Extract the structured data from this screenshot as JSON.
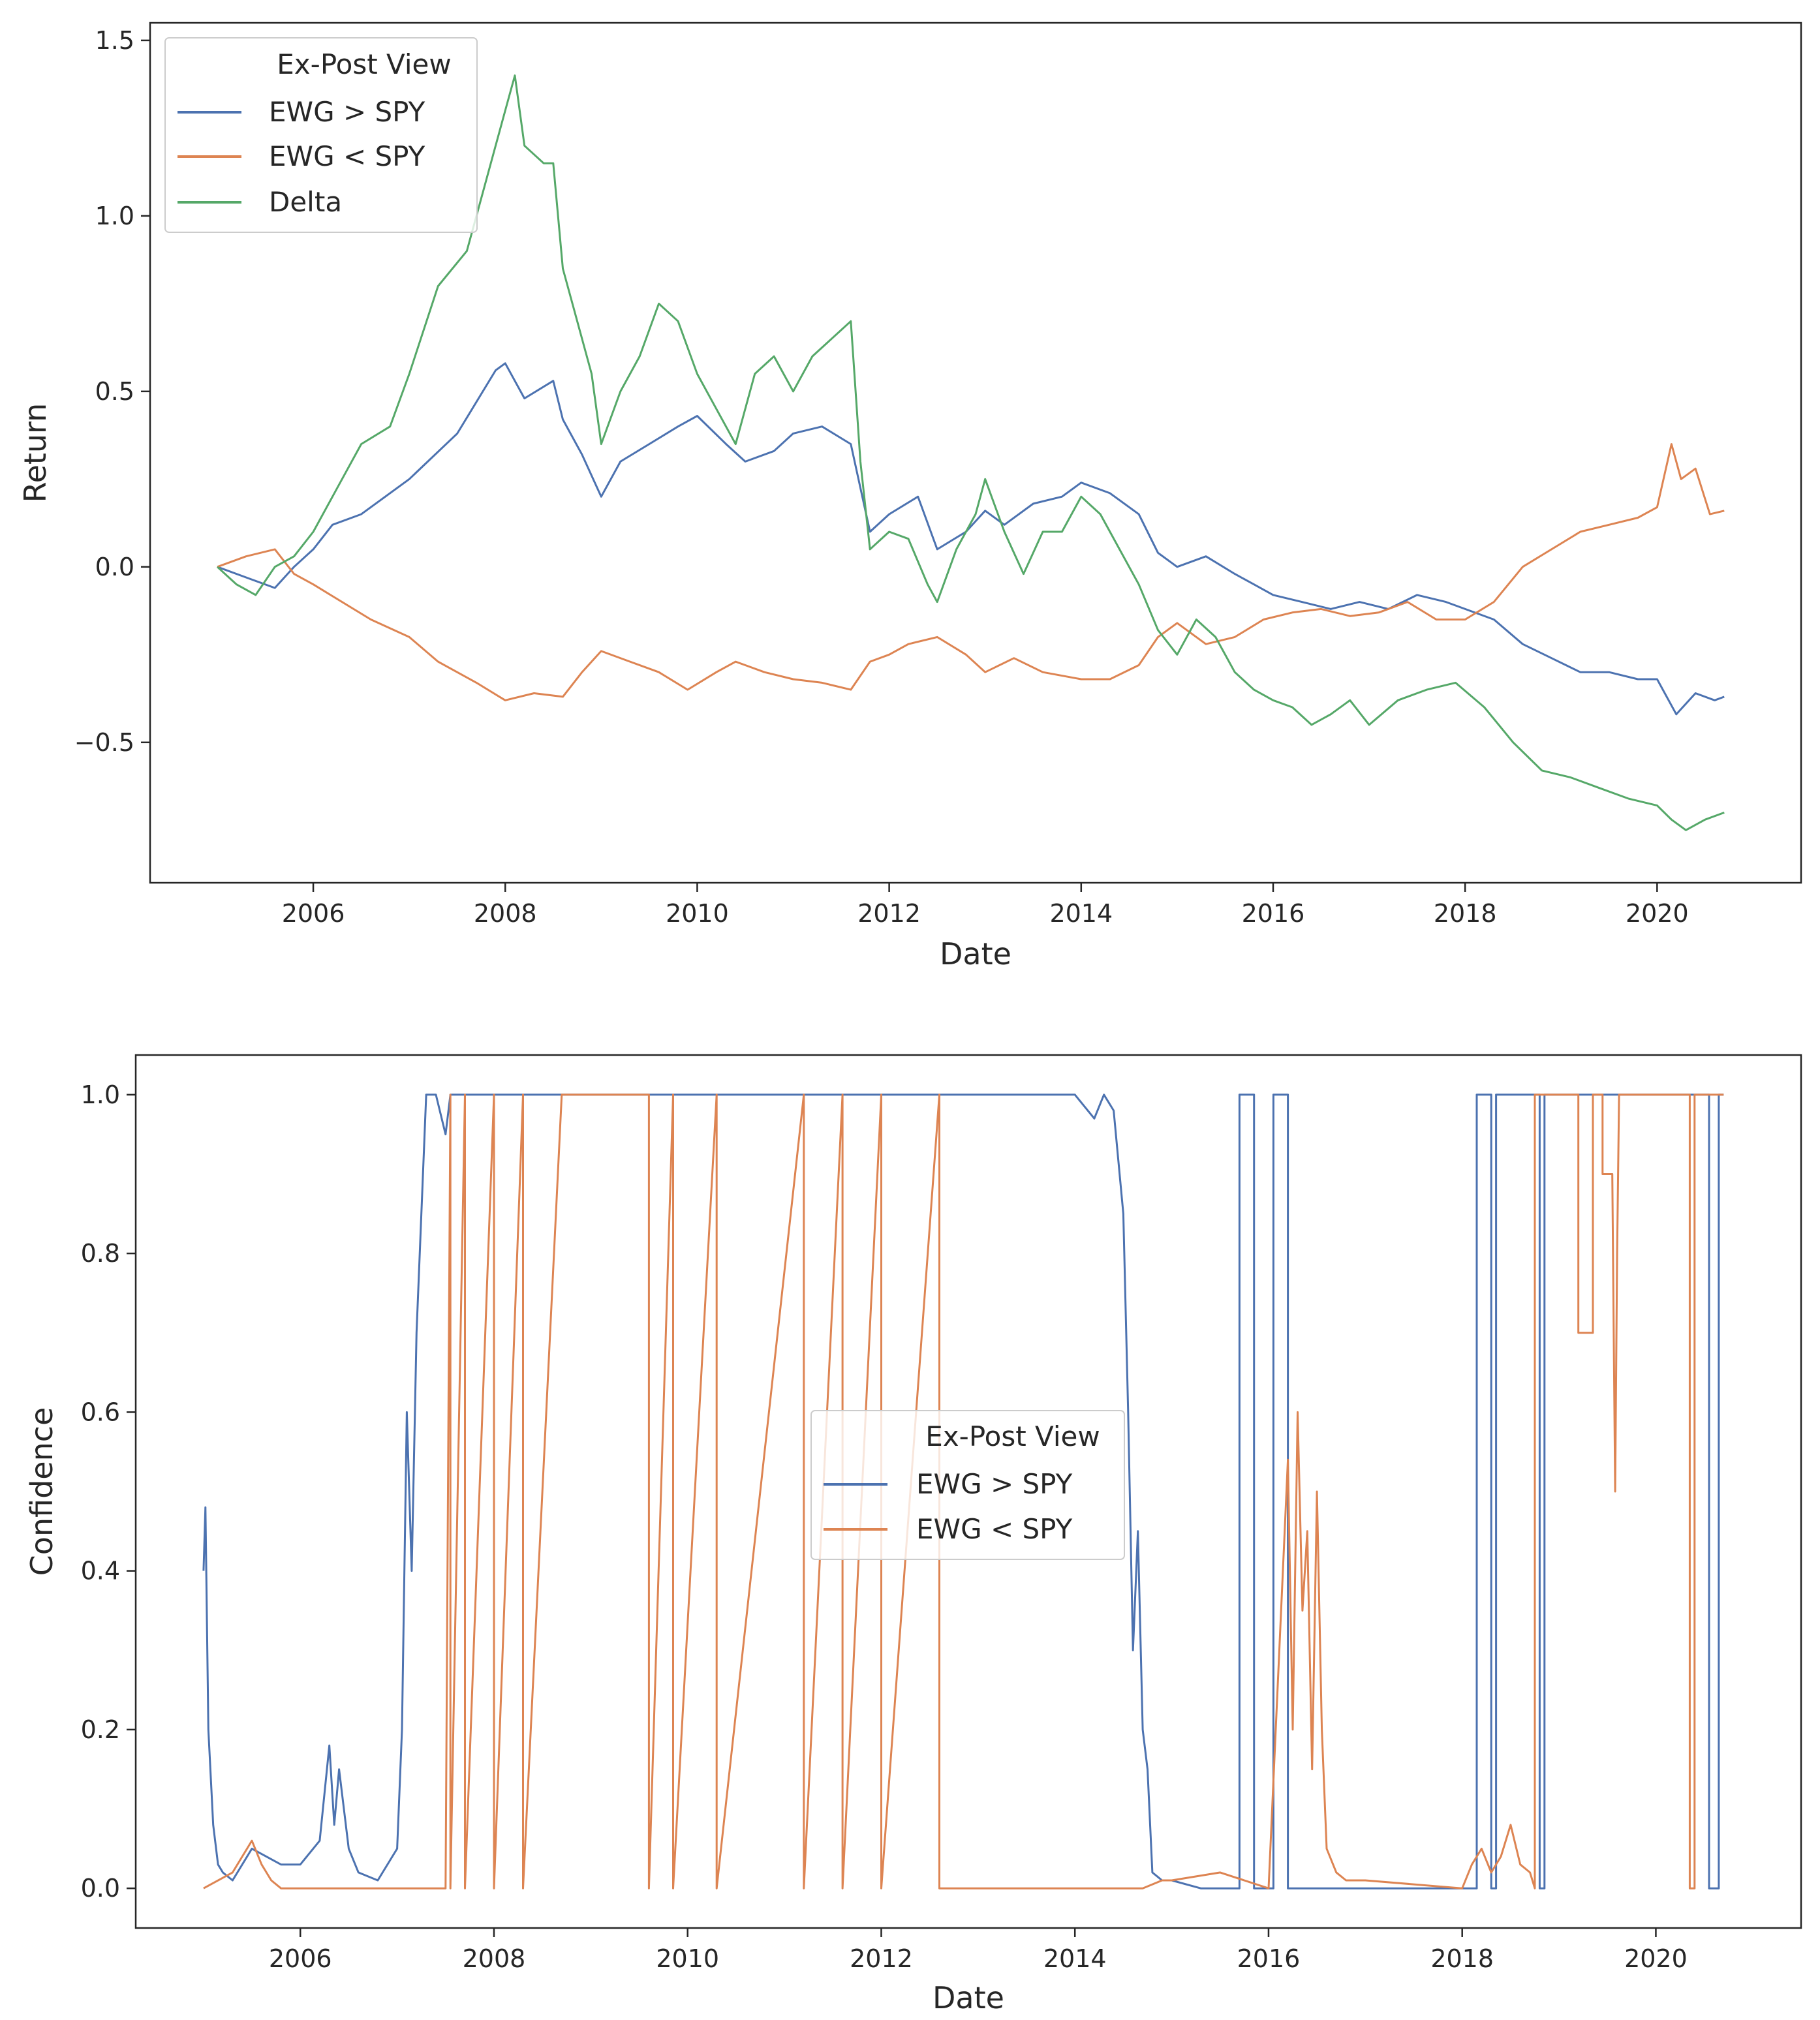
{
  "colors": {
    "ewg_gt_spy": "#4c72b0",
    "ewg_lt_spy": "#dd8452",
    "delta": "#55a868",
    "axes": "#262626",
    "legend_frame": "#cccccc"
  },
  "chart_data": [
    {
      "type": "line",
      "xlabel": "Date",
      "ylabel": "Return",
      "xlim": [
        2004.3,
        2021.5
      ],
      "ylim": [
        -0.9,
        1.55
      ],
      "xticks": [
        {
          "value": 2006,
          "label": "2006"
        },
        {
          "value": 2008,
          "label": "2008"
        },
        {
          "value": 2010,
          "label": "2010"
        },
        {
          "value": 2012,
          "label": "2012"
        },
        {
          "value": 2014,
          "label": "2014"
        },
        {
          "value": 2016,
          "label": "2016"
        },
        {
          "value": 2018,
          "label": "2018"
        },
        {
          "value": 2020,
          "label": "2020"
        }
      ],
      "yticks": [
        {
          "value": -0.5,
          "label": "−0.5"
        },
        {
          "value": 0.0,
          "label": "0.0"
        },
        {
          "value": 0.5,
          "label": "0.5"
        },
        {
          "value": 1.0,
          "label": "1.0"
        },
        {
          "value": 1.5,
          "label": "1.5"
        }
      ],
      "legend": {
        "title": "Ex-Post View",
        "position": "upper-left"
      },
      "series": [
        {
          "name": "EWG > SPY",
          "color_key": "ewg_gt_spy",
          "x": [
            2005.0,
            2005.3,
            2005.6,
            2005.8,
            2006.0,
            2006.2,
            2006.5,
            2007.0,
            2007.5,
            2007.9,
            2008.0,
            2008.2,
            2008.5,
            2008.6,
            2008.8,
            2009.0,
            2009.2,
            2009.5,
            2009.8,
            2010.0,
            2010.3,
            2010.5,
            2010.8,
            2011.0,
            2011.3,
            2011.6,
            2011.8,
            2012.0,
            2012.3,
            2012.5,
            2012.8,
            2013.0,
            2013.2,
            2013.5,
            2013.8,
            2014.0,
            2014.3,
            2014.6,
            2014.8,
            2015.0,
            2015.3,
            2015.6,
            2015.8,
            2016.0,
            2016.3,
            2016.6,
            2016.9,
            2017.2,
            2017.5,
            2017.8,
            2018.0,
            2018.3,
            2018.6,
            2018.9,
            2019.2,
            2019.5,
            2019.8,
            2020.0,
            2020.2,
            2020.4,
            2020.6,
            2020.7
          ],
          "y": [
            0.0,
            -0.03,
            -0.06,
            0.0,
            0.05,
            0.12,
            0.15,
            0.25,
            0.38,
            0.56,
            0.58,
            0.48,
            0.53,
            0.42,
            0.32,
            0.2,
            0.3,
            0.35,
            0.4,
            0.43,
            0.35,
            0.3,
            0.33,
            0.38,
            0.4,
            0.35,
            0.1,
            0.15,
            0.2,
            0.05,
            0.1,
            0.16,
            0.12,
            0.18,
            0.2,
            0.24,
            0.21,
            0.15,
            0.04,
            0.0,
            0.03,
            -0.02,
            -0.05,
            -0.08,
            -0.1,
            -0.12,
            -0.1,
            -0.12,
            -0.08,
            -0.1,
            -0.12,
            -0.15,
            -0.22,
            -0.26,
            -0.3,
            -0.3,
            -0.32,
            -0.32,
            -0.42,
            -0.36,
            -0.38,
            -0.37
          ]
        },
        {
          "name": "EWG < SPY",
          "color_key": "ewg_lt_spy",
          "x": [
            2005.0,
            2005.3,
            2005.6,
            2005.8,
            2006.0,
            2006.3,
            2006.6,
            2007.0,
            2007.3,
            2007.7,
            2008.0,
            2008.3,
            2008.6,
            2008.8,
            2009.0,
            2009.3,
            2009.6,
            2009.9,
            2010.2,
            2010.4,
            2010.7,
            2011.0,
            2011.3,
            2011.6,
            2011.8,
            2012.0,
            2012.2,
            2012.5,
            2012.8,
            2013.0,
            2013.3,
            2013.6,
            2014.0,
            2014.3,
            2014.6,
            2014.8,
            2015.0,
            2015.3,
            2015.6,
            2015.9,
            2016.2,
            2016.5,
            2016.8,
            2017.1,
            2017.4,
            2017.7,
            2018.0,
            2018.3,
            2018.6,
            2018.9,
            2019.2,
            2019.5,
            2019.8,
            2020.0,
            2020.15,
            2020.25,
            2020.4,
            2020.55,
            2020.7
          ],
          "y": [
            0.0,
            0.03,
            0.05,
            -0.02,
            -0.05,
            -0.1,
            -0.15,
            -0.2,
            -0.27,
            -0.33,
            -0.38,
            -0.36,
            -0.37,
            -0.3,
            -0.24,
            -0.27,
            -0.3,
            -0.35,
            -0.3,
            -0.27,
            -0.3,
            -0.32,
            -0.33,
            -0.35,
            -0.27,
            -0.25,
            -0.22,
            -0.2,
            -0.25,
            -0.3,
            -0.26,
            -0.3,
            -0.32,
            -0.32,
            -0.28,
            -0.2,
            -0.16,
            -0.22,
            -0.2,
            -0.15,
            -0.13,
            -0.12,
            -0.14,
            -0.13,
            -0.1,
            -0.15,
            -0.15,
            -0.1,
            0.0,
            0.05,
            0.1,
            0.12,
            0.14,
            0.17,
            0.35,
            0.25,
            0.28,
            0.15,
            0.16
          ]
        },
        {
          "name": "Delta",
          "color_key": "delta",
          "x": [
            2005.0,
            2005.2,
            2005.4,
            2005.6,
            2005.8,
            2006.0,
            2006.3,
            2006.5,
            2006.8,
            2007.0,
            2007.3,
            2007.6,
            2007.8,
            2008.0,
            2008.1,
            2008.2,
            2008.4,
            2008.5,
            2008.6,
            2008.7,
            2008.9,
            2009.0,
            2009.2,
            2009.4,
            2009.6,
            2009.8,
            2010.0,
            2010.2,
            2010.4,
            2010.6,
            2010.8,
            2011.0,
            2011.2,
            2011.4,
            2011.6,
            2011.7,
            2011.8,
            2012.0,
            2012.2,
            2012.4,
            2012.5,
            2012.7,
            2012.9,
            2013.0,
            2013.2,
            2013.4,
            2013.6,
            2013.8,
            2014.0,
            2014.2,
            2014.4,
            2014.6,
            2014.8,
            2015.0,
            2015.2,
            2015.4,
            2015.6,
            2015.8,
            2016.0,
            2016.2,
            2016.4,
            2016.6,
            2016.8,
            2017.0,
            2017.3,
            2017.6,
            2017.9,
            2018.2,
            2018.5,
            2018.8,
            2019.1,
            2019.4,
            2019.7,
            2020.0,
            2020.15,
            2020.3,
            2020.5,
            2020.7
          ],
          "y": [
            0.0,
            -0.05,
            -0.08,
            0.0,
            0.03,
            0.1,
            0.25,
            0.35,
            0.4,
            0.55,
            0.8,
            0.9,
            1.1,
            1.3,
            1.4,
            1.2,
            1.15,
            1.15,
            0.85,
            0.75,
            0.55,
            0.35,
            0.5,
            0.6,
            0.75,
            0.7,
            0.55,
            0.45,
            0.35,
            0.55,
            0.6,
            0.5,
            0.6,
            0.65,
            0.7,
            0.3,
            0.05,
            0.1,
            0.08,
            -0.05,
            -0.1,
            0.05,
            0.15,
            0.25,
            0.1,
            -0.02,
            0.1,
            0.1,
            0.2,
            0.15,
            0.05,
            -0.05,
            -0.18,
            -0.25,
            -0.15,
            -0.2,
            -0.3,
            -0.35,
            -0.38,
            -0.4,
            -0.45,
            -0.42,
            -0.38,
            -0.45,
            -0.38,
            -0.35,
            -0.33,
            -0.4,
            -0.5,
            -0.58,
            -0.6,
            -0.63,
            -0.66,
            -0.68,
            -0.72,
            -0.75,
            -0.72,
            -0.7
          ]
        }
      ]
    },
    {
      "type": "line",
      "xlabel": "Date",
      "ylabel": "Confidence",
      "xlim": [
        2004.3,
        2021.5
      ],
      "ylim": [
        -0.05,
        1.05
      ],
      "xticks": [
        {
          "value": 2006,
          "label": "2006"
        },
        {
          "value": 2008,
          "label": "2008"
        },
        {
          "value": 2010,
          "label": "2010"
        },
        {
          "value": 2012,
          "label": "2012"
        },
        {
          "value": 2014,
          "label": "2014"
        },
        {
          "value": 2016,
          "label": "2016"
        },
        {
          "value": 2018,
          "label": "2018"
        },
        {
          "value": 2020,
          "label": "2020"
        }
      ],
      "yticks": [
        {
          "value": 0.0,
          "label": "0.0"
        },
        {
          "value": 0.2,
          "label": "0.2"
        },
        {
          "value": 0.4,
          "label": "0.4"
        },
        {
          "value": 0.6,
          "label": "0.6"
        },
        {
          "value": 0.8,
          "label": "0.8"
        },
        {
          "value": 1.0,
          "label": "1.0"
        }
      ],
      "legend": {
        "title": "Ex-Post View",
        "position": "center"
      },
      "series": [
        {
          "name": "EWG > SPY",
          "color_key": "ewg_gt_spy",
          "x": [
            2005.0,
            2005.02,
            2005.05,
            2005.1,
            2005.15,
            2005.2,
            2005.3,
            2005.5,
            2005.8,
            2006.0,
            2006.2,
            2006.3,
            2006.35,
            2006.4,
            2006.5,
            2006.6,
            2006.8,
            2007.0,
            2007.05,
            2007.1,
            2007.15,
            2007.2,
            2007.25,
            2007.3,
            2007.4,
            2007.5,
            2007.55,
            2007.6,
            2007.7,
            2008.0,
            2009.0,
            2010.0,
            2011.0,
            2012.0,
            2013.0,
            2014.0,
            2014.2,
            2014.3,
            2014.4,
            2014.5,
            2014.55,
            2014.6,
            2014.65,
            2014.7,
            2014.75,
            2014.8,
            2014.9,
            2015.0,
            2015.3,
            2015.7,
            2015.7,
            2015.85,
            2015.85,
            2016.0,
            2016.05,
            2016.05,
            2016.2,
            2016.2,
            2016.3,
            2017.0,
            2018.0,
            2018.1,
            2018.15,
            2018.15,
            2018.3,
            2018.3,
            2018.35,
            2018.35,
            2018.8,
            2018.8,
            2018.85,
            2018.85,
            2019.5,
            2020.5,
            2020.55,
            2020.55,
            2020.65,
            2020.65,
            2020.7
          ],
          "y": [
            0.4,
            0.48,
            0.2,
            0.08,
            0.03,
            0.02,
            0.01,
            0.05,
            0.03,
            0.03,
            0.06,
            0.18,
            0.08,
            0.15,
            0.05,
            0.02,
            0.01,
            0.05,
            0.2,
            0.6,
            0.4,
            0.7,
            0.85,
            1.0,
            1.0,
            0.95,
            1.0,
            1.0,
            1.0,
            1.0,
            1.0,
            1.0,
            1.0,
            1.0,
            1.0,
            1.0,
            0.97,
            1.0,
            0.98,
            0.85,
            0.6,
            0.3,
            0.45,
            0.2,
            0.15,
            0.02,
            0.01,
            0.01,
            0.0,
            0.0,
            1.0,
            1.0,
            0.0,
            0.0,
            0.0,
            1.0,
            1.0,
            0.0,
            0.0,
            0.0,
            0.0,
            0.0,
            0.0,
            1.0,
            1.0,
            0.0,
            0.0,
            1.0,
            1.0,
            0.0,
            0.0,
            1.0,
            1.0,
            1.0,
            1.0,
            0.0,
            0.0,
            1.0,
            1.0
          ]
        },
        {
          "name": "EWG < SPY",
          "color_key": "ewg_lt_spy",
          "x": [
            2005.0,
            2005.3,
            2005.4,
            2005.5,
            2005.6,
            2005.7,
            2005.8,
            2006.0,
            2007.5,
            2007.55,
            2007.55,
            2007.7,
            2007.7,
            2008.0,
            2008.0,
            2008.3,
            2008.3,
            2008.7,
            2008.7,
            2009.6,
            2009.6,
            2009.85,
            2009.85,
            2010.3,
            2010.3,
            2011.2,
            2011.2,
            2011.6,
            2011.6,
            2012.0,
            2012.0,
            2012.6,
            2012.6,
            2014.7,
            2014.9,
            2015.0,
            2015.5,
            2016.0,
            2016.2,
            2016.25,
            2016.3,
            2016.35,
            2016.4,
            2016.45,
            2016.5,
            2016.55,
            2016.6,
            2016.7,
            2016.8,
            2017.0,
            2018.0,
            2018.1,
            2018.15,
            2018.2,
            2018.3,
            2018.4,
            2018.5,
            2018.6,
            2018.7,
            2018.75,
            2018.75,
            2019.2,
            2019.2,
            2019.35,
            2019.35,
            2019.45,
            2019.45,
            2019.55,
            2019.58,
            2019.6,
            2019.62,
            2019.7,
            2019.7,
            2020.0,
            2020.35,
            2020.35,
            2020.4,
            2020.4,
            2020.45,
            2020.45,
            2020.7
          ],
          "y": [
            0.0,
            0.02,
            0.04,
            0.06,
            0.03,
            0.01,
            0.0,
            0.0,
            0.0,
            1.0,
            0.0,
            1.0,
            0.0,
            1.0,
            0.0,
            1.0,
            0.0,
            1.0,
            1.0,
            1.0,
            0.0,
            1.0,
            0.0,
            1.0,
            0.0,
            1.0,
            0.0,
            1.0,
            0.0,
            1.0,
            0.0,
            1.0,
            0.0,
            0.0,
            0.01,
            0.01,
            0.02,
            0.0,
            0.54,
            0.2,
            0.6,
            0.35,
            0.45,
            0.15,
            0.5,
            0.2,
            0.05,
            0.02,
            0.01,
            0.01,
            0.0,
            0.03,
            0.04,
            0.05,
            0.02,
            0.04,
            0.08,
            0.03,
            0.02,
            0.0,
            1.0,
            1.0,
            0.7,
            0.7,
            1.0,
            1.0,
            0.9,
            0.9,
            0.5,
            0.8,
            1.0,
            1.0,
            1.0,
            1.0,
            1.0,
            0.0,
            0.0,
            1.0,
            1.0,
            1.0,
            1.0
          ]
        }
      ]
    }
  ]
}
